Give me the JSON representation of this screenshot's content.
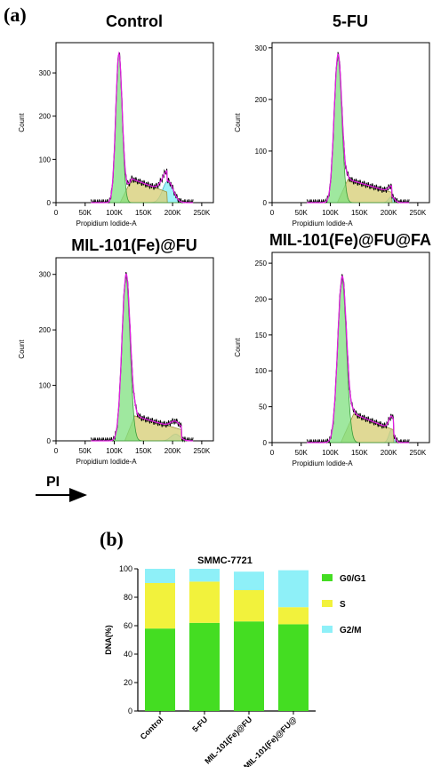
{
  "figure": {
    "label_a": "(a)",
    "label_b": "(b)",
    "pi_label": "PI"
  },
  "chart_data": [
    {
      "type": "area",
      "title": "Control",
      "xlabel": "Propidium Iodide-A",
      "ylabel": "Count",
      "xlim": [
        0,
        270000
      ],
      "ylim": [
        0,
        370
      ],
      "x_ticks": [
        "0",
        "50K",
        "100K",
        "150K",
        "200K",
        "250K"
      ],
      "y_ticks": [
        "0",
        "100",
        "200",
        "300"
      ],
      "g1": {
        "center": 108000,
        "height": 345,
        "sigma": 5500
      },
      "s": {
        "from": 110000,
        "to": 190000,
        "peak": 55,
        "peak_at": 130000
      },
      "g2": {
        "center": 192000,
        "height": 50,
        "sigma": 9000
      }
    },
    {
      "type": "area",
      "title": "5-FU",
      "xlabel": "Propidium Iodide-A",
      "ylabel": "Count",
      "xlim": [
        0,
        270000
      ],
      "ylim": [
        0,
        310
      ],
      "x_ticks": [
        "0",
        "50K",
        "100K",
        "150K",
        "200K",
        "250K"
      ],
      "y_ticks": [
        "0",
        "100",
        "200",
        "300"
      ],
      "g1": {
        "center": 113000,
        "height": 285,
        "sigma": 6500
      },
      "s": {
        "from": 112000,
        "to": 205000,
        "peak": 45,
        "peak_at": 130000
      },
      "g2": {
        "center": 205000,
        "height": 12,
        "sigma": 5000
      }
    },
    {
      "type": "area",
      "title": "MIL-101(Fe)@FU",
      "xlabel": "Propidium Iodide-A",
      "ylabel": "Count",
      "xlim": [
        0,
        270000
      ],
      "ylim": [
        0,
        330
      ],
      "x_ticks": [
        "0",
        "50K",
        "100K",
        "150K",
        "200K",
        "250K"
      ],
      "y_ticks": [
        "0",
        "100",
        "200",
        "300"
      ],
      "g1": {
        "center": 120000,
        "height": 295,
        "sigma": 7000
      },
      "s": {
        "from": 118000,
        "to": 215000,
        "peak": 45,
        "peak_at": 135000
      },
      "g2": {
        "center": 205000,
        "height": 12,
        "sigma": 8000
      }
    },
    {
      "type": "area",
      "title": "MIL-101(Fe)@FU@FA",
      "xlabel": "Propidium Iodide-A",
      "ylabel": "Count",
      "xlim": [
        0,
        270000
      ],
      "ylim": [
        0,
        265
      ],
      "x_ticks": [
        "0",
        "50K",
        "100K",
        "150K",
        "200K",
        "250K"
      ],
      "y_ticks": [
        "0",
        "50",
        "100",
        "150",
        "200",
        "250"
      ],
      "g1": {
        "center": 120000,
        "height": 228,
        "sigma": 7500
      },
      "s": {
        "from": 118000,
        "to": 208000,
        "peak": 40,
        "peak_at": 140000
      },
      "g2": {
        "center": 205000,
        "height": 18,
        "sigma": 4500
      }
    },
    {
      "type": "bar",
      "title": "SMMC-7721",
      "ylabel": "DNA(%)",
      "ylim": [
        0,
        100
      ],
      "y_ticks": [
        "0",
        "20",
        "40",
        "60",
        "80",
        "100"
      ],
      "categories": [
        "Control",
        "5-FU",
        "MIL-101(Fe)@FU",
        "MIL-101(Fe)@FU@"
      ],
      "series": [
        {
          "name": "G0/G1",
          "color": "#44dd22",
          "values": [
            58,
            62,
            63,
            61
          ]
        },
        {
          "name": "S",
          "color": "#f2f23c",
          "values": [
            32,
            29,
            22,
            12
          ]
        },
        {
          "name": "G2/M",
          "color": "#8ef0f8",
          "values": [
            10,
            9,
            13,
            26
          ]
        }
      ],
      "legend_position": "right"
    }
  ]
}
